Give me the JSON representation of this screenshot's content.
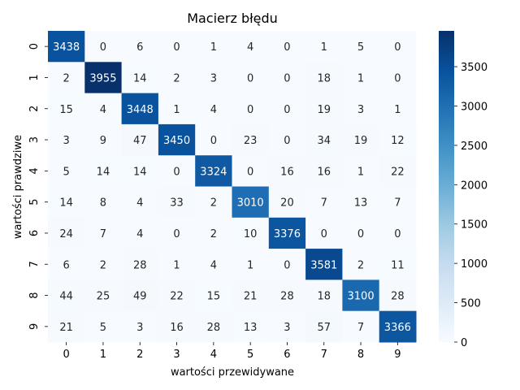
{
  "chart_data": {
    "type": "heatmap",
    "title": "Macierz błędu",
    "xlabel": "wartości przewidywane",
    "ylabel": "wartości prawdziwe",
    "x_categories": [
      "0",
      "1",
      "2",
      "3",
      "4",
      "5",
      "6",
      "7",
      "8",
      "9"
    ],
    "y_categories": [
      "0",
      "1",
      "2",
      "3",
      "4",
      "5",
      "6",
      "7",
      "8",
      "9"
    ],
    "values": [
      [
        3438,
        0,
        6,
        0,
        1,
        4,
        0,
        1,
        5,
        0
      ],
      [
        2,
        3955,
        14,
        2,
        3,
        0,
        0,
        18,
        1,
        0
      ],
      [
        15,
        4,
        3448,
        1,
        4,
        0,
        0,
        19,
        3,
        1
      ],
      [
        3,
        9,
        47,
        3450,
        0,
        23,
        0,
        34,
        19,
        12
      ],
      [
        5,
        14,
        14,
        0,
        3324,
        0,
        16,
        16,
        1,
        22
      ],
      [
        14,
        8,
        4,
        33,
        2,
        3010,
        20,
        7,
        13,
        7
      ],
      [
        24,
        7,
        4,
        0,
        2,
        10,
        3376,
        0,
        0,
        0
      ],
      [
        6,
        2,
        28,
        1,
        4,
        1,
        0,
        3581,
        2,
        11
      ],
      [
        44,
        25,
        49,
        22,
        15,
        21,
        28,
        18,
        3100,
        28
      ],
      [
        21,
        5,
        3,
        16,
        28,
        13,
        3,
        57,
        7,
        3366
      ]
    ],
    "colorbar": {
      "min": 0,
      "max": 3955,
      "ticks": [
        0,
        500,
        1000,
        1500,
        2000,
        2500,
        3000,
        3500
      ]
    },
    "colormap": "Blues",
    "colors": {
      "low": "#f7fbff",
      "high": "#08306b",
      "text_dark": "#262626",
      "text_light": "#ffffff"
    }
  }
}
